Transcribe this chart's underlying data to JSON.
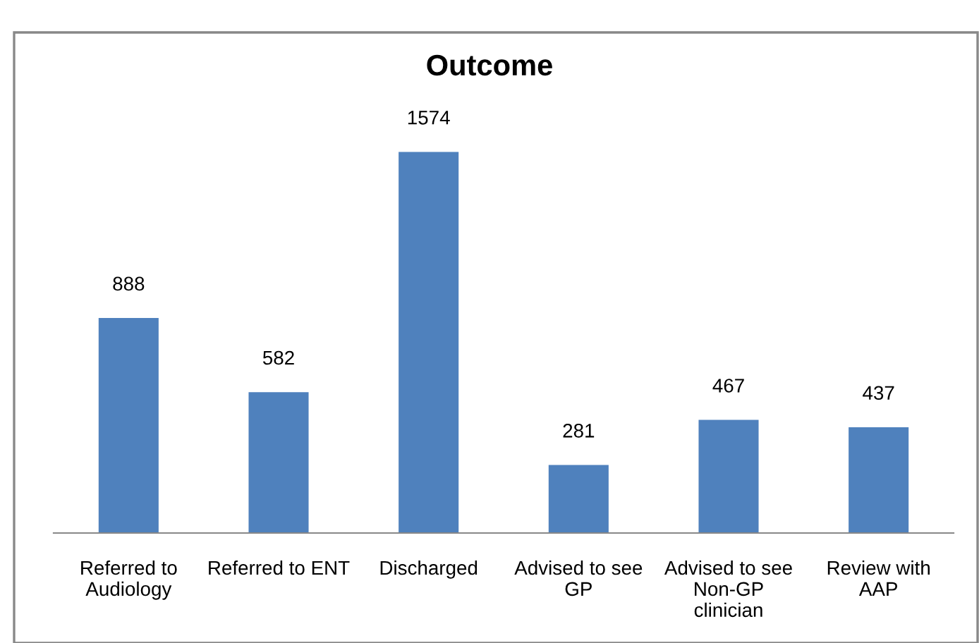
{
  "chart_data": {
    "type": "bar",
    "title": "Outcome",
    "categories": [
      "Referred to\nAudiology",
      "Referred to ENT",
      "Discharged",
      "Advised to see\nGP",
      "Advised to see\nNon-GP\nclinician",
      "Review with\nAAP"
    ],
    "values": [
      888,
      582,
      1574,
      281,
      467,
      437
    ],
    "color": "#4f81bd",
    "data_labels": true,
    "grid": false,
    "legend": false
  }
}
